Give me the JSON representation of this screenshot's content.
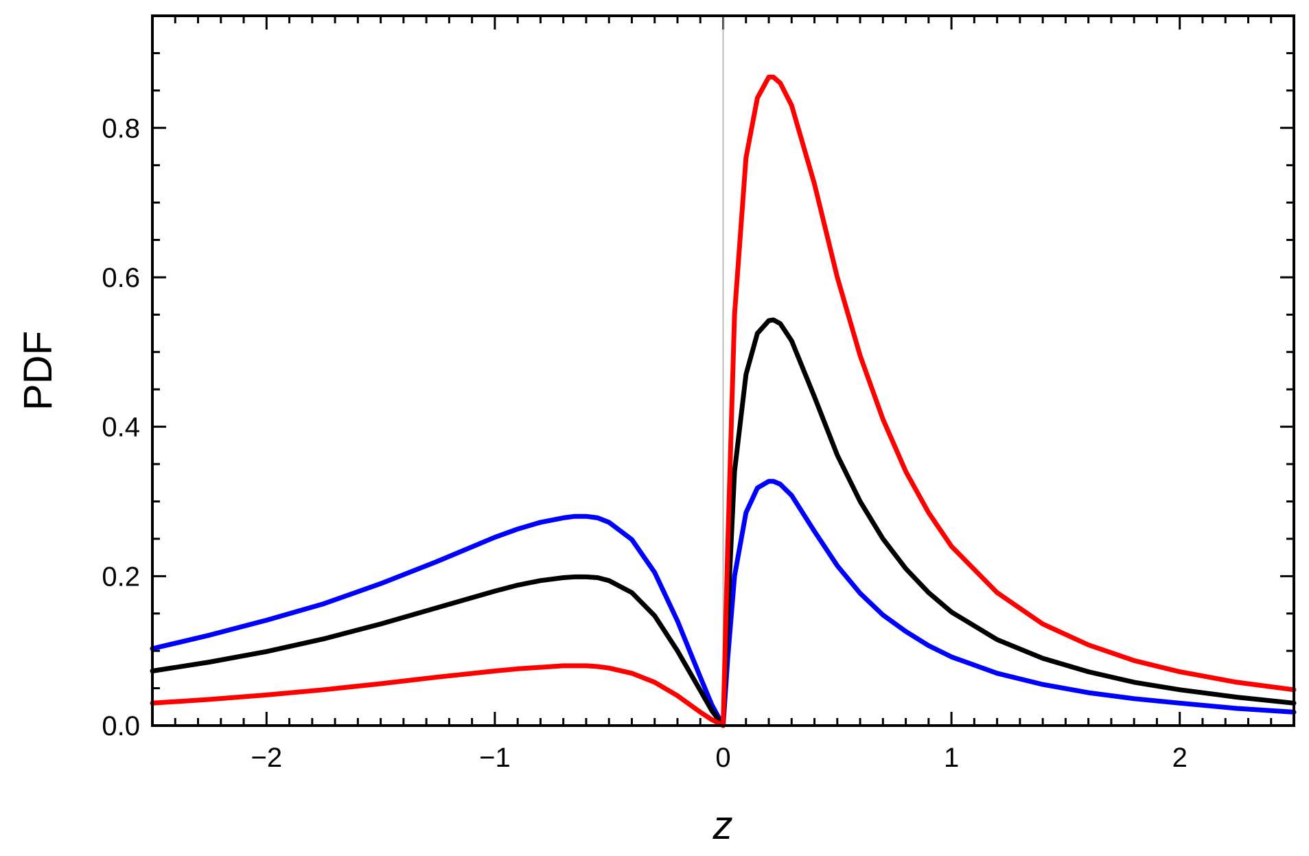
{
  "chart_data": {
    "type": "line",
    "title": "",
    "xlabel": "z",
    "ylabel": "PDF",
    "xlim": [
      -2.5,
      2.5
    ],
    "ylim": [
      0,
      0.95
    ],
    "x_ticks": [
      -2,
      -1,
      0,
      1,
      2
    ],
    "x_tick_labels": [
      "−2",
      "−1",
      "0",
      "1",
      "2"
    ],
    "y_ticks": [
      0.0,
      0.2,
      0.4,
      0.6,
      0.8
    ],
    "y_tick_labels": [
      "0.0",
      "0.2",
      "0.4",
      "0.6",
      "0.8"
    ],
    "grid": false,
    "legend": "none",
    "zero_line": true,
    "series": [
      {
        "color": "#0000ff",
        "x": [
          -2.5,
          -2.25,
          -2.0,
          -1.75,
          -1.5,
          -1.25,
          -1.0,
          -0.9,
          -0.8,
          -0.7,
          -0.65,
          -0.6,
          -0.55,
          -0.5,
          -0.4,
          -0.3,
          -0.2,
          -0.1,
          -0.05,
          0.0,
          0.02,
          0.05,
          0.1,
          0.15,
          0.2,
          0.22,
          0.25,
          0.3,
          0.4,
          0.5,
          0.6,
          0.7,
          0.8,
          0.9,
          1.0,
          1.2,
          1.4,
          1.6,
          1.8,
          2.0,
          2.25,
          2.5
        ],
        "y": [
          0.103,
          0.121,
          0.141,
          0.163,
          0.19,
          0.22,
          0.252,
          0.263,
          0.272,
          0.278,
          0.28,
          0.28,
          0.278,
          0.272,
          0.249,
          0.205,
          0.14,
          0.065,
          0.028,
          0.0,
          0.09,
          0.2,
          0.285,
          0.318,
          0.327,
          0.327,
          0.323,
          0.308,
          0.26,
          0.214,
          0.177,
          0.148,
          0.126,
          0.107,
          0.092,
          0.07,
          0.055,
          0.044,
          0.036,
          0.03,
          0.023,
          0.018
        ]
      },
      {
        "color": "#000000",
        "x": [
          -2.5,
          -2.25,
          -2.0,
          -1.75,
          -1.5,
          -1.25,
          -1.0,
          -0.9,
          -0.8,
          -0.7,
          -0.65,
          -0.6,
          -0.55,
          -0.5,
          -0.4,
          -0.3,
          -0.2,
          -0.1,
          -0.05,
          0.0,
          0.02,
          0.05,
          0.1,
          0.15,
          0.2,
          0.22,
          0.25,
          0.3,
          0.4,
          0.5,
          0.6,
          0.7,
          0.8,
          0.9,
          1.0,
          1.2,
          1.4,
          1.6,
          1.8,
          2.0,
          2.25,
          2.5
        ],
        "y": [
          0.073,
          0.085,
          0.099,
          0.116,
          0.136,
          0.158,
          0.18,
          0.188,
          0.194,
          0.198,
          0.199,
          0.199,
          0.198,
          0.194,
          0.178,
          0.147,
          0.1,
          0.047,
          0.02,
          0.0,
          0.15,
          0.34,
          0.47,
          0.525,
          0.542,
          0.543,
          0.538,
          0.515,
          0.44,
          0.362,
          0.3,
          0.25,
          0.21,
          0.178,
          0.152,
          0.115,
          0.09,
          0.072,
          0.058,
          0.048,
          0.038,
          0.03
        ]
      },
      {
        "color": "#ff0000",
        "x": [
          -2.5,
          -2.25,
          -2.0,
          -1.75,
          -1.5,
          -1.25,
          -1.0,
          -0.9,
          -0.8,
          -0.7,
          -0.65,
          -0.6,
          -0.55,
          -0.5,
          -0.4,
          -0.3,
          -0.2,
          -0.1,
          -0.05,
          0.0,
          0.02,
          0.05,
          0.1,
          0.15,
          0.2,
          0.22,
          0.25,
          0.3,
          0.4,
          0.5,
          0.6,
          0.7,
          0.8,
          0.9,
          1.0,
          1.2,
          1.4,
          1.6,
          1.8,
          2.0,
          2.25,
          2.5
        ],
        "y": [
          0.03,
          0.035,
          0.041,
          0.048,
          0.056,
          0.065,
          0.073,
          0.076,
          0.078,
          0.08,
          0.08,
          0.08,
          0.079,
          0.077,
          0.07,
          0.058,
          0.04,
          0.018,
          0.008,
          0.0,
          0.24,
          0.55,
          0.76,
          0.84,
          0.868,
          0.868,
          0.86,
          0.83,
          0.725,
          0.6,
          0.495,
          0.41,
          0.34,
          0.285,
          0.24,
          0.178,
          0.136,
          0.108,
          0.087,
          0.072,
          0.058,
          0.048
        ]
      }
    ]
  }
}
